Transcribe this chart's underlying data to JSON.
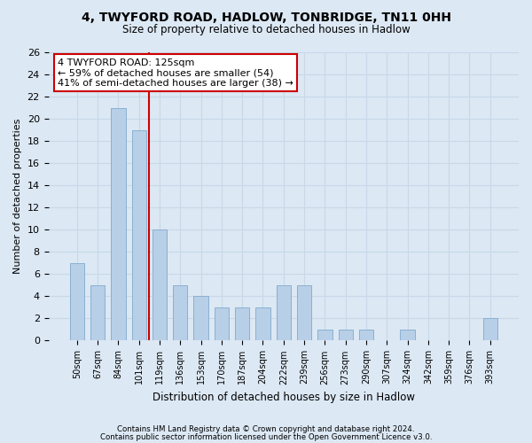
{
  "title1": "4, TWYFORD ROAD, HADLOW, TONBRIDGE, TN11 0HH",
  "title2": "Size of property relative to detached houses in Hadlow",
  "xlabel": "Distribution of detached houses by size in Hadlow",
  "ylabel": "Number of detached properties",
  "categories": [
    "50sqm",
    "67sqm",
    "84sqm",
    "101sqm",
    "119sqm",
    "136sqm",
    "153sqm",
    "170sqm",
    "187sqm",
    "204sqm",
    "222sqm",
    "239sqm",
    "256sqm",
    "273sqm",
    "290sqm",
    "307sqm",
    "324sqm",
    "342sqm",
    "359sqm",
    "376sqm",
    "393sqm"
  ],
  "values": [
    7,
    5,
    21,
    19,
    10,
    5,
    4,
    3,
    3,
    3,
    5,
    5,
    1,
    1,
    1,
    0,
    1,
    0,
    0,
    0,
    2
  ],
  "bar_color": "#b8cfe8",
  "bar_edge_color": "#8ab0d0",
  "property_line_index": 3.5,
  "property_line_color": "#cc0000",
  "annotation_text": "4 TWYFORD ROAD: 125sqm\n← 59% of detached houses are smaller (54)\n41% of semi-detached houses are larger (38) →",
  "annotation_box_color": "#ffffff",
  "annotation_box_edge_color": "#cc0000",
  "ylim": [
    0,
    26
  ],
  "yticks": [
    0,
    2,
    4,
    6,
    8,
    10,
    12,
    14,
    16,
    18,
    20,
    22,
    24,
    26
  ],
  "grid_color": "#c8d8e8",
  "background_color": "#dce8f4",
  "footer_text1": "Contains HM Land Registry data © Crown copyright and database right 2024.",
  "footer_text2": "Contains public sector information licensed under the Open Government Licence v3.0."
}
